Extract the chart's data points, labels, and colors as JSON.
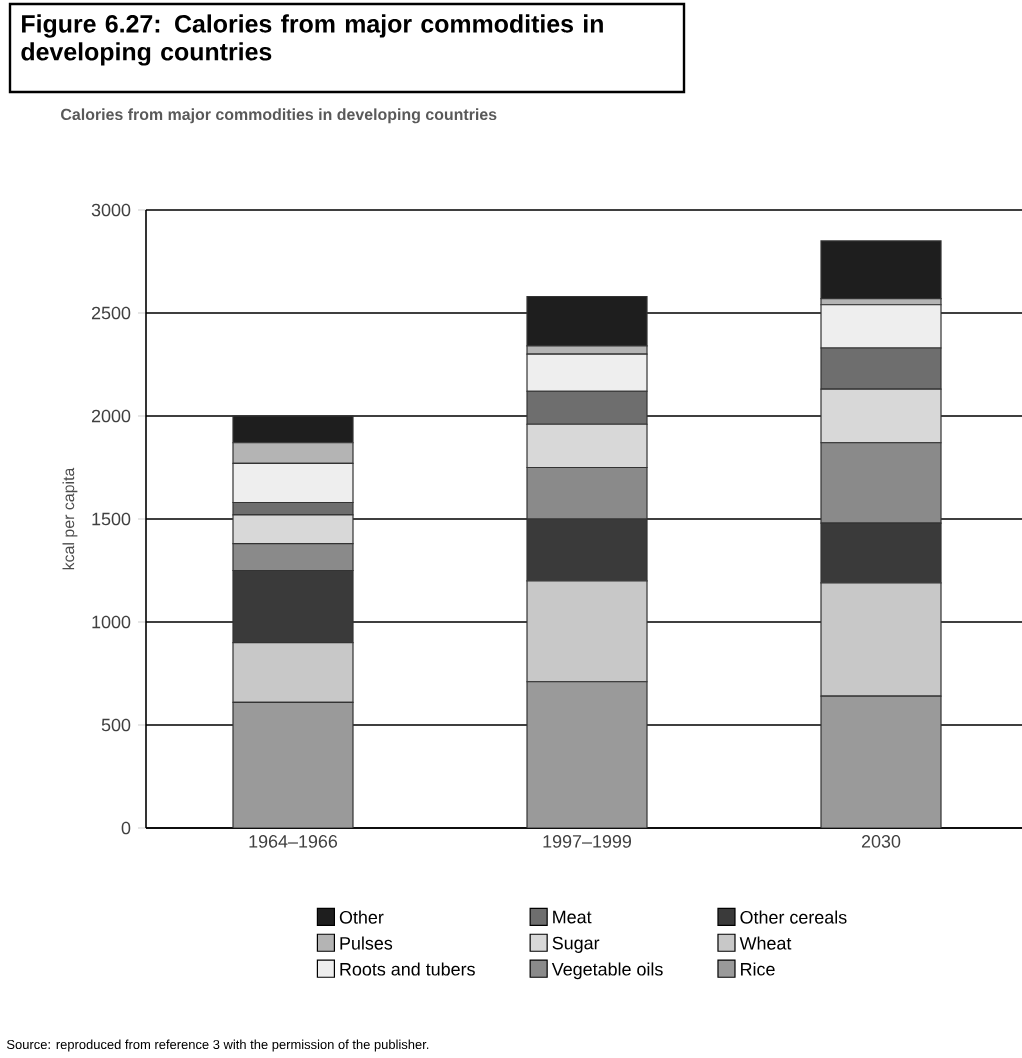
{
  "chart_data": {
    "type": "bar",
    "title": "Figure 6.27: Calories from major commodities in developing countries",
    "subtitle": "Calories from major commodities in developing countries",
    "ylabel": "kcal per capita",
    "categories": [
      "1964–1966",
      "1997–1999",
      "2030"
    ],
    "stacked": true,
    "series": [
      {
        "name": "Rice",
        "color": "#9a9a9a",
        "values": [
          610,
          710,
          640
        ]
      },
      {
        "name": "Wheat",
        "color": "#c8c8c8",
        "values": [
          290,
          490,
          550
        ]
      },
      {
        "name": "Other cereals",
        "color": "#3a3a3a",
        "values": [
          350,
          300,
          290
        ]
      },
      {
        "name": "Vegetable oils",
        "color": "#8a8a8a",
        "values": [
          130,
          250,
          390
        ]
      },
      {
        "name": "Sugar",
        "color": "#d8d8d8",
        "values": [
          140,
          210,
          260
        ]
      },
      {
        "name": "Meat",
        "color": "#6e6e6e",
        "values": [
          60,
          160,
          200
        ]
      },
      {
        "name": "Roots and tubers",
        "color": "#eeeeee",
        "values": [
          190,
          180,
          210
        ]
      },
      {
        "name": "Pulses",
        "color": "#b4b4b4",
        "values": [
          100,
          40,
          30
        ]
      },
      {
        "name": "Other",
        "color": "#1e1e1e",
        "values": [
          130,
          240,
          280
        ]
      }
    ],
    "ylim": [
      0,
      3000
    ],
    "yticks": [
      0,
      500,
      1000,
      1500,
      2000,
      2500,
      3000
    ],
    "grid": "y",
    "legend": "bottom",
    "annotations": [
      "Source: reproduced from reference 3 with the permission of the publisher."
    ]
  }
}
